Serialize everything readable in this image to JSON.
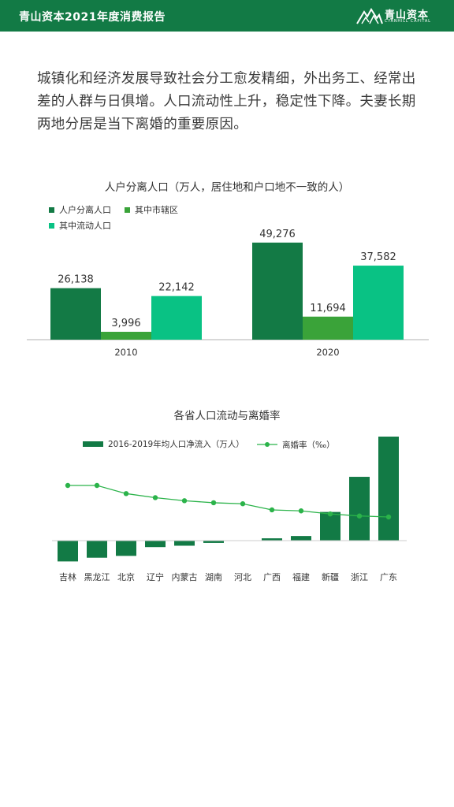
{
  "header": {
    "title": "青山资本2021年度消费报告",
    "logo_name": "青山资本",
    "logo_sub": "CYANHILL CAPITAL"
  },
  "intro": "城镇化和经济发展导致社会分工愈发精细，外出务工、经常出差的人群与日俱增。人口流动性上升，稳定性下降。夫妻长期两地分居是当下离婚的重要原因。",
  "colors": {
    "brand": "#127a45",
    "dark_green": "#137a45",
    "mid_green": "#3aa339",
    "light_green": "#09c284",
    "line_green": "#2bb34a"
  },
  "chart_data": [
    {
      "type": "bar",
      "title": "人户分离人口（万人，居住地和户口地不一致的人）",
      "categories": [
        "2010",
        "2020"
      ],
      "series": [
        {
          "name": "人户分离人口",
          "values": [
            26138,
            49276
          ],
          "labels": [
            "26,138",
            "49,276"
          ],
          "color": "#137a45"
        },
        {
          "name": "其中市辖区",
          "values": [
            3996,
            11694
          ],
          "labels": [
            "3,996",
            "11,694"
          ],
          "color": "#3aa339"
        },
        {
          "name": "其中流动人口",
          "values": [
            22142,
            37582
          ],
          "labels": [
            "22,142",
            "37,582"
          ],
          "color": "#09c284"
        }
      ],
      "ylim": [
        0,
        50000
      ],
      "legend": "top-left",
      "grid": false
    },
    {
      "type": "bar",
      "title": "各省人口流动与离婚率",
      "categories": [
        "吉林",
        "黑龙江",
        "北京",
        "辽宁",
        "内蒙古",
        "湖南",
        "河北",
        "广西",
        "福建",
        "新疆",
        "浙江",
        "广东"
      ],
      "series": [
        {
          "name": "2016-2019年均人口净流入（万人）",
          "chart": "bar",
          "values": [
            -45,
            -37,
            -33,
            -14,
            -11,
            -5,
            0,
            5,
            10,
            62,
            138,
            225
          ],
          "color": "#127a45"
        },
        {
          "name": "离婚率（‰）",
          "chart": "line",
          "values": [
            4.35,
            4.35,
            3.95,
            3.75,
            3.6,
            3.5,
            3.45,
            3.15,
            3.1,
            2.95,
            2.85,
            2.8
          ],
          "color": "#2bb34a"
        }
      ],
      "legend": "top",
      "grid": false
    }
  ]
}
